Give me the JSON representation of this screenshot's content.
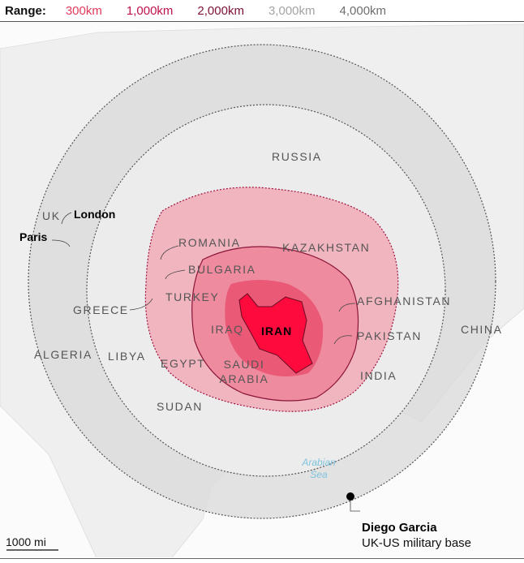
{
  "legend": {
    "label": "Range:",
    "items": [
      {
        "label": "300km",
        "color": "#e23a5c"
      },
      {
        "label": "1,000km",
        "color": "#c0124a"
      },
      {
        "label": "2,000km",
        "color": "#7d1135"
      },
      {
        "label": "3,000km",
        "color": "#a3a3a3"
      },
      {
        "label": "4,000km",
        "color": "#6e6e6e"
      }
    ]
  },
  "countries": {
    "russia": "RUSSIA",
    "uk": "UK",
    "kazakhstan": "KAZAKHSTAN",
    "romania": "ROMANIA",
    "bulgaria": "BULGARIA",
    "turkey": "TURKEY",
    "greece": "GREECE",
    "afghanistan": "AFGHANISTAN",
    "china": "CHINA",
    "iraq": "IRAQ",
    "iran": "IRAN",
    "pakistan": "PAKISTAN",
    "algeria": "ALGERIA",
    "libya": "LIBYA",
    "egypt": "EGYPT",
    "saudi_arabia": "SAUDI ARABIA",
    "india": "INDIA",
    "sudan": "SUDAN"
  },
  "cities": {
    "london": "London",
    "paris": "Paris"
  },
  "sea": "Arabian Sea",
  "base": {
    "name": "Diego Garcia",
    "desc": "UK-US military base"
  },
  "scale": "1000 mi"
}
